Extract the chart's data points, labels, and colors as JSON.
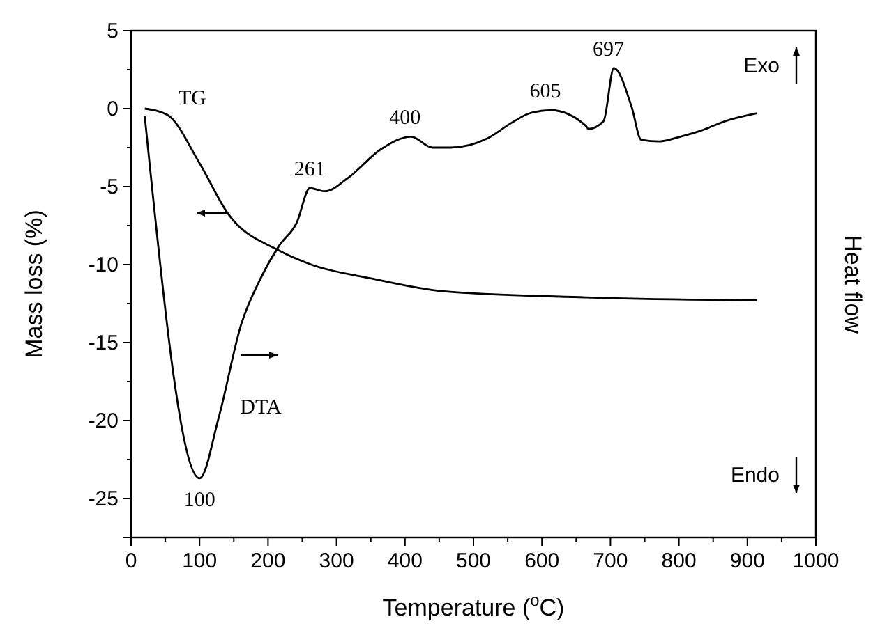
{
  "chart_data": {
    "type": "line",
    "xlabel": "Temperature ($^{o}$C)",
    "ylabel": "Mass loss (%)",
    "y2label": "Heat flow",
    "xlim": [
      0,
      1000
    ],
    "xticks": [
      0,
      {
        "value": 50,
        "label": null
      },
      100,
      {
        "value": 150,
        "label": null
      },
      200,
      {
        "value": 250,
        "label": null
      },
      300,
      {
        "value": 350,
        "label": null
      },
      400,
      {
        "value": 450,
        "label": null
      },
      500,
      {
        "value": 550,
        "label": null
      },
      600,
      {
        "value": 650,
        "label": null
      },
      700,
      {
        "value": 750,
        "label": null
      },
      800,
      {
        "value": 850,
        "label": null
      },
      900,
      {
        "value": 950,
        "label": null
      },
      1000
    ],
    "ylim": [
      -27.5,
      5
    ],
    "yticks": [
      -25,
      {
        "value": -22.5,
        "label": null
      },
      -20,
      {
        "value": -17.5,
        "label": null
      },
      -15,
      {
        "value": -12.5,
        "label": null
      },
      -10,
      {
        "value": -7.5,
        "label": null
      },
      -5,
      {
        "value": -2.5,
        "label": null
      },
      0,
      {
        "value": 2.5,
        "label": null
      },
      5
    ],
    "grid": false,
    "marker": "none",
    "line_style": "solid",
    "series": [
      {
        "color": "#000000",
        "x": [
          20,
          53,
          100,
          141,
          216,
          263,
          352,
          454,
          664,
          914
        ],
        "values": [
          0,
          -0.4,
          -3.5,
          -6.7,
          -9.1,
          -10,
          -10.9,
          -11.7,
          -12.1,
          -12.3
        ]
      },
      {
        "color": "#000000",
        "x": [
          20,
          100,
          128,
          161,
          189,
          216,
          242,
          261,
          283,
          318,
          365,
          409,
          440,
          466,
          521,
          556,
          582,
          613,
          664,
          668,
          690,
          705,
          731,
          745,
          772,
          802,
          833,
          868,
          914
        ],
        "values": [
          -0.5,
          -23.7,
          -19.8,
          -13.8,
          -10.9,
          -8.8,
          -7.3,
          -5.1,
          -5.3,
          -4.4,
          -2.6,
          -1.8,
          -2.5,
          -2.5,
          -1.9,
          -0.9,
          -0.3,
          -0.1,
          -1.1,
          -1.3,
          -0.8,
          2.6,
          0.1,
          -2.0,
          -2.1,
          -1.8,
          -1.4,
          -0.8,
          -0.3
        ]
      }
    ],
    "annotations": [
      "TG",
      "DTA",
      {
        "text": "261",
        "x": 261,
        "y": -5.1
      },
      {
        "text": "400",
        "x": 400,
        "y": -1.8
      },
      {
        "text": "605",
        "x": 605,
        "y": -0.1
      },
      {
        "text": "697",
        "x": 697,
        "y": 2.6
      },
      {
        "text": "100",
        "x": 100,
        "y": -23.7
      },
      "Exo",
      "Endo"
    ]
  }
}
